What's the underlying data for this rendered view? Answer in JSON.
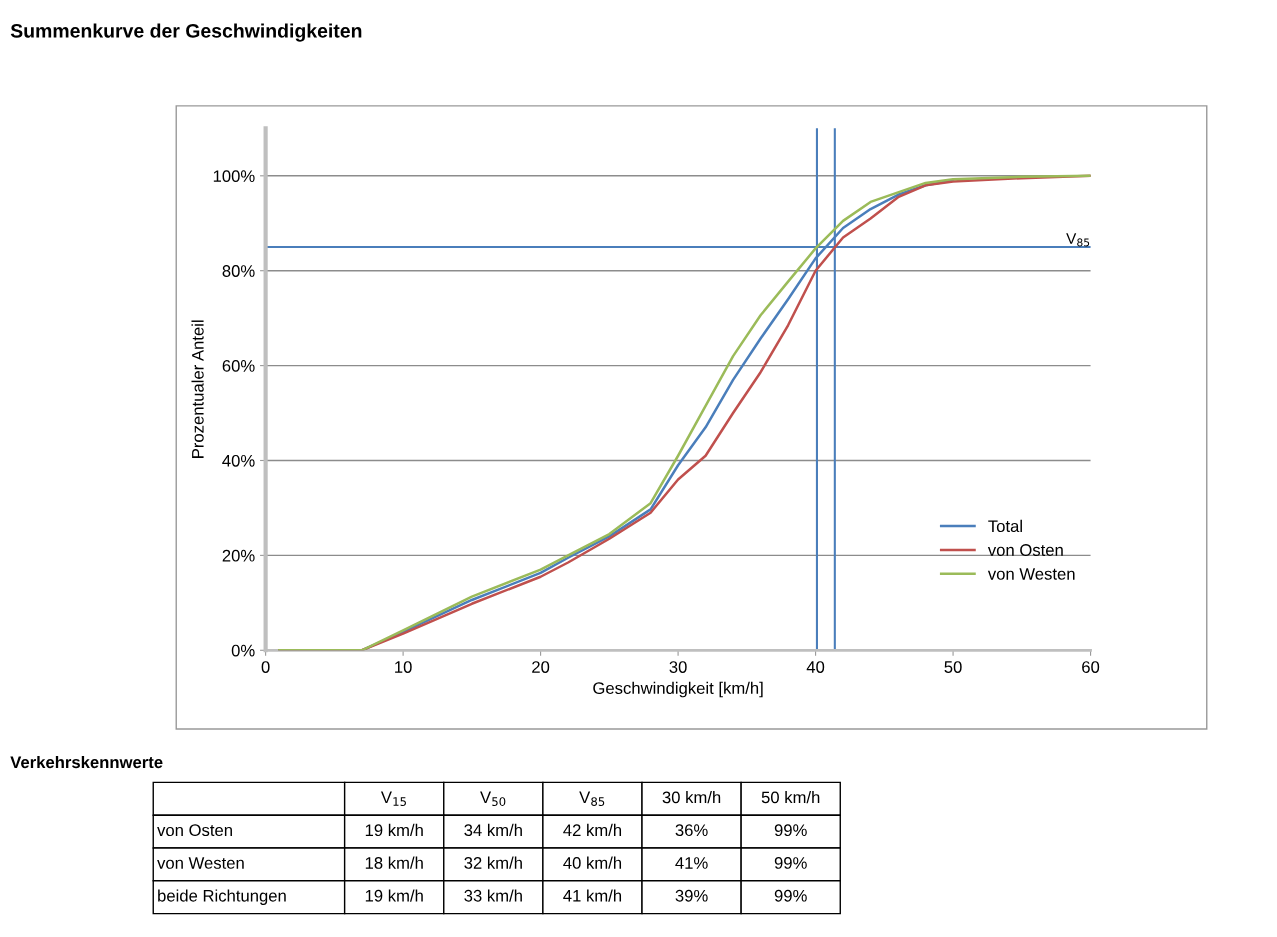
{
  "chart_data": {
    "type": "line",
    "title": "Summenkurve der Geschwindigkeiten",
    "xlabel": "Geschwindigkeit [km/h]",
    "ylabel": "Prozentualer Anteil",
    "x": [
      1,
      7,
      10,
      15,
      20,
      22,
      25,
      28,
      30,
      32,
      34,
      36,
      38,
      40,
      42,
      44,
      46,
      48,
      50,
      55,
      60
    ],
    "series": [
      {
        "name": "Total",
        "color": "#4a7ebb",
        "values": [
          0,
          0,
          3.9,
          10.6,
          16.3,
          19.5,
          24,
          29.7,
          39,
          47,
          57,
          65.7,
          74,
          82.6,
          89,
          93,
          96,
          98,
          99,
          null,
          null
        ]
      },
      {
        "name": "von Osten",
        "color": "#c0504d",
        "values": [
          0,
          0,
          3.5,
          9.8,
          15.5,
          18.5,
          23.5,
          29,
          36,
          41,
          50,
          58.6,
          68.5,
          80,
          87,
          91,
          95.5,
          98,
          98.8,
          99.5,
          100
        ]
      },
      {
        "name": "von Westen",
        "color": "#9bbb59",
        "values": [
          0,
          0,
          4.2,
          11.3,
          17,
          20,
          24.5,
          31,
          41,
          51.5,
          62,
          70.6,
          77.7,
          84.7,
          90.5,
          94.5,
          96.5,
          98.5,
          99.3,
          99.8,
          100
        ]
      }
    ],
    "xlim": [
      0,
      60
    ],
    "xticks": [
      0,
      10,
      20,
      30,
      40,
      50,
      60
    ],
    "ylim": [
      0,
      110
    ],
    "yticks": [
      {
        "value": 0,
        "label": "0%"
      },
      {
        "value": 20,
        "label": "20%"
      },
      {
        "value": 40,
        "label": "40%"
      },
      {
        "value": 60,
        "label": "60%"
      },
      {
        "value": 80,
        "label": "80%"
      },
      {
        "value": 100,
        "label": "100%"
      }
    ],
    "grid": "y",
    "legend": "lower right",
    "marker": "none",
    "line_style": "solid",
    "ref_lines": [
      {
        "axis": "y",
        "value": 85,
        "label": "V$_{85}$",
        "color": "#4a7ebb"
      },
      {
        "axis": "x",
        "value": 40.1,
        "color": "#4a7ebb"
      },
      {
        "axis": "x",
        "value": 41.4,
        "color": "#4a7ebb"
      }
    ],
    "annotations": [
      "Verkehrskennwerte",
      null,
      "V$_{15}$",
      "V$_{50}$",
      "V$_{85}$",
      "30 km/h",
      "50 km/h",
      "von Osten",
      "19 km/h",
      "34 km/h",
      "42 km/h",
      "36%",
      "99%",
      "von Westen",
      "18 km/h",
      "32 km/h",
      "40 km/h",
      "41%",
      "99%",
      "beide Richtungen",
      "19 km/h",
      "33 km/h",
      "41 km/h",
      "39%",
      "99%"
    ]
  }
}
